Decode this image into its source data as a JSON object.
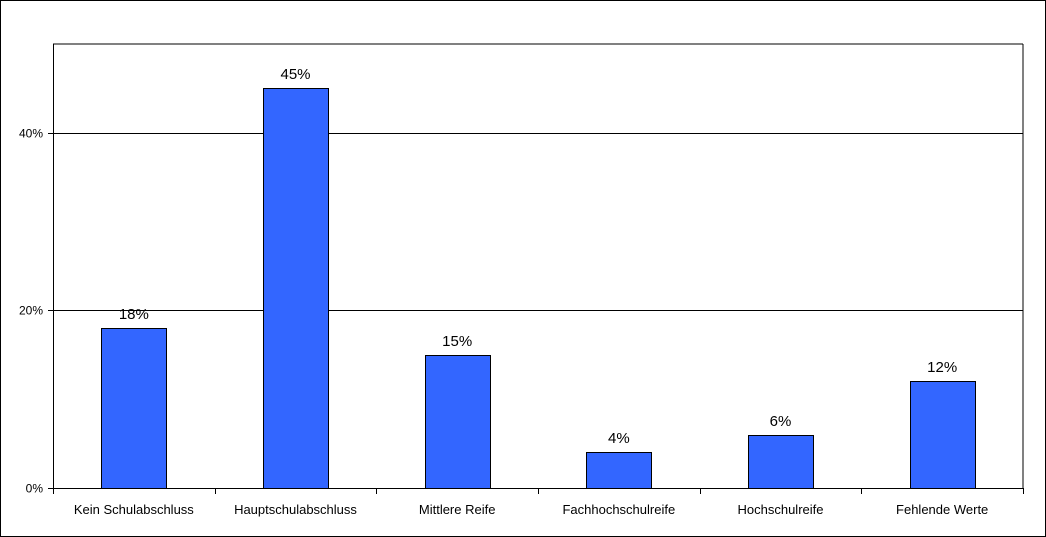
{
  "chart_data": {
    "type": "bar",
    "categories": [
      "Kein Schulabschluss",
      "Hauptschulabschluss",
      "Mittlere Reife",
      "Fachhochschulreife",
      "Hochschulreife",
      "Fehlende Werte"
    ],
    "values": [
      18,
      45,
      15,
      4,
      6,
      12
    ],
    "data_labels": [
      "18%",
      "45%",
      "15%",
      "4%",
      "6%",
      "12%"
    ],
    "title": "",
    "xlabel": "",
    "ylabel": "",
    "ylim": [
      0,
      50
    ],
    "yticks": [
      0,
      20,
      40
    ],
    "ytick_labels": [
      "0%",
      "20%",
      "40%"
    ],
    "grid": true,
    "legend": "none",
    "bar_color": "#3366ff"
  }
}
